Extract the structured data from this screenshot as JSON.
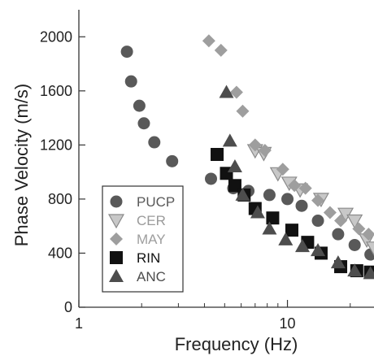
{
  "chart_data": {
    "type": "scatter",
    "title": "",
    "xlabel": "Frequency (Hz)",
    "ylabel": "Phase Velocity (m/s)",
    "x_scale": "log",
    "xlim": [
      1,
      26
    ],
    "ylim": [
      0,
      2200
    ],
    "x_ticks": [
      1,
      10
    ],
    "x_tick_labels": [
      "1",
      "10"
    ],
    "y_ticks": [
      0,
      400,
      800,
      1200,
      1600,
      2000
    ],
    "y_tick_labels": [
      "0",
      "400",
      "800",
      "1200",
      "1600",
      "2000"
    ],
    "grid": false,
    "legend_position": "lower-left",
    "series": [
      {
        "name": "PUCP",
        "marker": "circle",
        "color": "#595959",
        "points": [
          [
            1.7,
            1890
          ],
          [
            1.78,
            1670
          ],
          [
            1.95,
            1490
          ],
          [
            2.05,
            1360
          ],
          [
            2.3,
            1220
          ],
          [
            2.8,
            1080
          ],
          [
            4.3,
            950
          ],
          [
            5.5,
            880
          ],
          [
            6.5,
            860
          ],
          [
            8.2,
            830
          ],
          [
            10.0,
            800
          ],
          [
            11.7,
            750
          ],
          [
            14.0,
            640
          ],
          [
            17.5,
            540
          ],
          [
            21.0,
            460
          ],
          [
            25.0,
            390
          ]
        ]
      },
      {
        "name": "CER",
        "marker": "triangle-down",
        "color": "#c8c8c8",
        "points": [
          [
            7.0,
            1160
          ],
          [
            7.7,
            1140
          ],
          [
            9.0,
            990
          ],
          [
            10.2,
            920
          ],
          [
            11.5,
            870
          ],
          [
            14.5,
            800
          ],
          [
            19.0,
            690
          ],
          [
            21.0,
            640
          ],
          [
            24.0,
            500
          ],
          [
            26.0,
            440
          ]
        ]
      },
      {
        "name": "MAY",
        "marker": "diamond",
        "color": "#9e9e9e",
        "points": [
          [
            4.2,
            1970
          ],
          [
            4.8,
            1900
          ],
          [
            5.7,
            1590
          ],
          [
            6.1,
            1450
          ],
          [
            7.0,
            1200
          ],
          [
            7.8,
            1160
          ],
          [
            9.5,
            1020
          ],
          [
            10.8,
            900
          ],
          [
            12.2,
            880
          ],
          [
            14.0,
            790
          ],
          [
            16.0,
            700
          ],
          [
            18.0,
            640
          ],
          [
            22.0,
            580
          ],
          [
            24.5,
            540
          ]
        ]
      },
      {
        "name": "RIN",
        "marker": "square",
        "color": "#111111",
        "points": [
          [
            4.6,
            1130
          ],
          [
            5.1,
            990
          ],
          [
            5.6,
            900
          ],
          [
            6.2,
            830
          ],
          [
            7.0,
            730
          ],
          [
            8.5,
            660
          ],
          [
            10.5,
            570
          ],
          [
            12.5,
            480
          ],
          [
            14.5,
            400
          ],
          [
            18.0,
            300
          ],
          [
            21.5,
            270
          ],
          [
            25.0,
            260
          ]
        ]
      },
      {
        "name": "ANC",
        "marker": "triangle-up",
        "color": "#4d4d4d",
        "points": [
          [
            5.1,
            1590
          ],
          [
            5.3,
            1230
          ],
          [
            5.6,
            1040
          ],
          [
            6.1,
            830
          ],
          [
            7.2,
            700
          ],
          [
            8.2,
            580
          ],
          [
            9.8,
            500
          ],
          [
            11.8,
            450
          ],
          [
            14.0,
            420
          ],
          [
            17.5,
            330
          ],
          [
            21.0,
            270
          ],
          [
            25.0,
            250
          ]
        ]
      }
    ]
  }
}
